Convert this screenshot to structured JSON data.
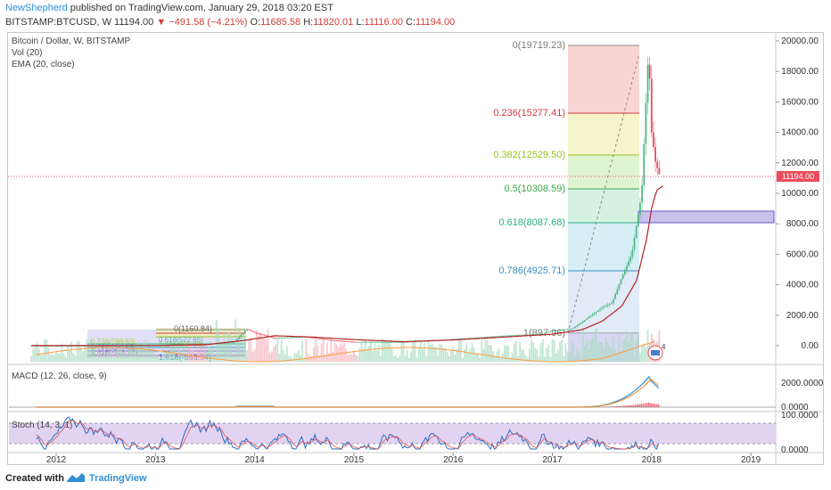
{
  "header": {
    "author": "NewShepherd",
    "published": "published on TradingView.com, January 29, 2018 03:20 EST",
    "symbol": "BITSTAMP:BTCUSD, W",
    "last": "11194.00",
    "change": "−491.58 (−4.21%)",
    "o_label": "O:",
    "o_val": "11685.58",
    "h_label": "H:",
    "h_val": "11820.01",
    "l_label": "L:",
    "l_val": "11116.00",
    "c_label": "C:",
    "c_val": "11194.00"
  },
  "legend": {
    "main": "Bitcoin / Dollar, W, BITSTAMP",
    "vol": "Vol (20)",
    "ema": "EMA (20, close)",
    "macd": "MACD (12, 26, close, 9)",
    "stoch": "Stoch (14, 3, 1)"
  },
  "fib": [
    {
      "label": "0(19719.23)",
      "color": "#7a7a7a"
    },
    {
      "label": "0.236(15277.41)",
      "color": "#d23c3c"
    },
    {
      "label": "0.382(12529.50)",
      "color": "#9cc21c"
    },
    {
      "label": "0.5(10308.59)",
      "color": "#3aa84c"
    },
    {
      "label": "0.618(8087.68)",
      "color": "#2bb089"
    },
    {
      "label": "0.786(4925.71)",
      "color": "#3b8fc4"
    },
    {
      "label": "1(897.96)",
      "color": "#7a7a7a"
    }
  ],
  "old_fib": {
    "top": "0(1160.84)",
    "bottom": "1.618(-585.94)"
  },
  "price_badge": "11194.00",
  "event_badge": "4",
  "colors": {
    "up": "#53b987",
    "down": "#eb4d5c",
    "ema": "#b22222",
    "macd": "#2196f3",
    "signal": "#ff7f0e",
    "stoch_band": "#e3d3f3",
    "accent": "#2f8fd6"
  },
  "chart_data": {
    "type": "line",
    "title": "Bitcoin / Dollar, W, BITSTAMP",
    "price_axis": {
      "ticks": [
        "20000.00",
        "18000.00",
        "16000.00",
        "14000.00",
        "12000.00",
        "10000.00",
        "8000.00",
        "6000.00",
        "4000.00",
        "2000.00",
        "0.00"
      ],
      "ylim": [
        -700,
        20600
      ]
    },
    "macd_axis": {
      "ticks": [
        "2000.0000",
        "0.0000"
      ]
    },
    "stoch_axis": {
      "ticks": [
        "100.0000",
        "0.0000"
      ]
    },
    "x_ticks": [
      "2012",
      "2013",
      "2014",
      "2015",
      "2016",
      "2017",
      "2018",
      "2019"
    ],
    "series": [
      {
        "name": "BTCUSD",
        "x": [
          2011.75,
          2012.0,
          2012.5,
          2013.0,
          2013.3,
          2013.5,
          2013.8,
          2013.92,
          2014.0,
          2014.2,
          2014.5,
          2014.8,
          2015.0,
          2015.5,
          2015.9,
          2016.0,
          2016.5,
          2016.9,
          2017.0,
          2017.2,
          2017.35,
          2017.5,
          2017.6,
          2017.7,
          2017.8,
          2017.9,
          2017.95,
          2017.97,
          2018.0,
          2018.04,
          2018.08
        ],
        "y": [
          5,
          6,
          10,
          13,
          130,
          90,
          250,
          1100,
          850,
          500,
          600,
          350,
          250,
          250,
          380,
          430,
          650,
          780,
          1000,
          1100,
          1800,
          2500,
          2800,
          4500,
          6000,
          10000,
          17000,
          19500,
          14000,
          12000,
          11194
        ]
      },
      {
        "name": "EMA (20, close)",
        "x": [
          2011.75,
          2012.5,
          2013.0,
          2013.5,
          2013.9,
          2014.2,
          2014.6,
          2015.0,
          2015.5,
          2016.0,
          2016.5,
          2017.0,
          2017.3,
          2017.5,
          2017.7,
          2017.85,
          2017.95,
          2018.0,
          2018.05,
          2018.12
        ],
        "y": [
          5,
          8,
          12,
          60,
          350,
          650,
          560,
          400,
          260,
          380,
          560,
          750,
          1050,
          1600,
          2600,
          4300,
          7000,
          9000,
          10200,
          10500
        ]
      }
    ]
  }
}
